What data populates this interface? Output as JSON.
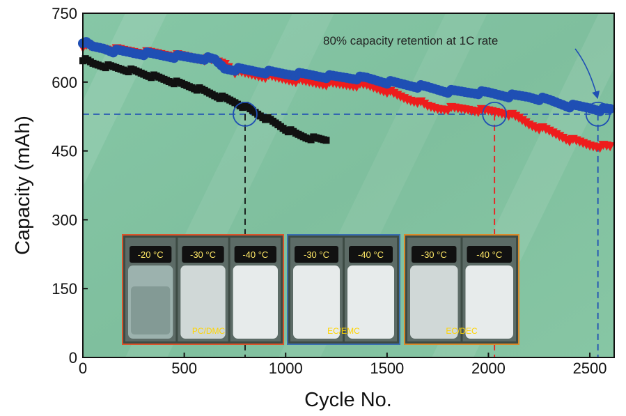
{
  "chart_data": {
    "type": "scatter",
    "xlabel": "Cycle No.",
    "ylabel": "Capacity (mAh)",
    "xlim": [
      0,
      2620
    ],
    "ylim": [
      0,
      750
    ],
    "xticks": [
      0,
      500,
      1000,
      1500,
      2000,
      2500
    ],
    "yticks": [
      0,
      150,
      300,
      450,
      600,
      750
    ],
    "grid": false,
    "series": [
      {
        "color": "#111111",
        "marker": "square",
        "points": [
          [
            0,
            650
          ],
          [
            50,
            640
          ],
          [
            100,
            636
          ],
          [
            150,
            632
          ],
          [
            200,
            628
          ],
          [
            250,
            624
          ],
          [
            300,
            618
          ],
          [
            350,
            612
          ],
          [
            400,
            606
          ],
          [
            450,
            600
          ],
          [
            500,
            594
          ],
          [
            550,
            588
          ],
          [
            600,
            580
          ],
          [
            650,
            572
          ],
          [
            700,
            564
          ],
          [
            750,
            556
          ],
          [
            800,
            546
          ],
          [
            850,
            534
          ],
          [
            900,
            522
          ],
          [
            950,
            510
          ],
          [
            1000,
            498
          ],
          [
            1050,
            487
          ],
          [
            1100,
            480
          ],
          [
            1150,
            476
          ],
          [
            1200,
            474
          ]
        ]
      },
      {
        "color": "#ee1c1c",
        "marker": "triangle-down",
        "points": [
          [
            0,
            678
          ],
          [
            100,
            673
          ],
          [
            200,
            668
          ],
          [
            300,
            664
          ],
          [
            400,
            660
          ],
          [
            500,
            655
          ],
          [
            600,
            650
          ],
          [
            700,
            640
          ],
          [
            750,
            622
          ],
          [
            800,
            618
          ],
          [
            900,
            612
          ],
          [
            1000,
            606
          ],
          [
            1100,
            600
          ],
          [
            1200,
            596
          ],
          [
            1300,
            594
          ],
          [
            1400,
            592
          ],
          [
            1500,
            580
          ],
          [
            1550,
            570
          ],
          [
            1600,
            562
          ],
          [
            1650,
            558
          ],
          [
            1700,
            546
          ],
          [
            1750,
            542
          ],
          [
            1800,
            542
          ],
          [
            1900,
            540
          ],
          [
            2000,
            536
          ],
          [
            2050,
            534
          ],
          [
            2100,
            530
          ],
          [
            2150,
            520
          ],
          [
            2200,
            508
          ],
          [
            2300,
            492
          ],
          [
            2400,
            474
          ],
          [
            2500,
            462
          ],
          [
            2600,
            458
          ]
        ]
      },
      {
        "color": "#1f4fb4",
        "marker": "circle",
        "points": [
          [
            0,
            688
          ],
          [
            50,
            676
          ],
          [
            100,
            674
          ],
          [
            150,
            668
          ],
          [
            200,
            666
          ],
          [
            300,
            662
          ],
          [
            400,
            658
          ],
          [
            500,
            654
          ],
          [
            600,
            652
          ],
          [
            650,
            648
          ],
          [
            700,
            630
          ],
          [
            800,
            626
          ],
          [
            900,
            622
          ],
          [
            1000,
            618
          ],
          [
            1100,
            616
          ],
          [
            1200,
            612
          ],
          [
            1300,
            610
          ],
          [
            1400,
            608
          ],
          [
            1500,
            600
          ],
          [
            1600,
            594
          ],
          [
            1700,
            588
          ],
          [
            1800,
            580
          ],
          [
            1900,
            578
          ],
          [
            2000,
            576
          ],
          [
            2100,
            570
          ],
          [
            2200,
            568
          ],
          [
            2300,
            560
          ],
          [
            2400,
            548
          ],
          [
            2500,
            544
          ],
          [
            2550,
            540
          ],
          [
            2600,
            540
          ]
        ]
      }
    ],
    "reference_line_y": 530,
    "drop_lines_x": [
      {
        "x": 800,
        "color": "#111111"
      },
      {
        "x": 2030,
        "color": "#ee1c1c"
      },
      {
        "x": 2540,
        "color": "#1f4fb4"
      }
    ],
    "circles_x": [
      800,
      2030,
      2540
    ],
    "annotation": "80% capacity retention at 1C rate"
  },
  "insets": [
    {
      "border_color": "#d9542b",
      "caption": "PC/DMC",
      "jars": [
        {
          "temp": "-20 °C",
          "clarity": "clear"
        },
        {
          "temp": "-30 °C",
          "clarity": "hazy"
        },
        {
          "temp": "-40 °C",
          "clarity": "cloudy"
        }
      ]
    },
    {
      "border_color": "#3a6fb0",
      "caption": "EC/EMC",
      "jars": [
        {
          "temp": "-30 °C",
          "clarity": "cloudy"
        },
        {
          "temp": "-40 °C",
          "clarity": "cloudy"
        }
      ]
    },
    {
      "border_color": "#d98a2b",
      "caption": "EC/DEC",
      "jars": [
        {
          "temp": "-30 °C",
          "clarity": "hazy"
        },
        {
          "temp": "-40 °C",
          "clarity": "cloudy"
        }
      ]
    }
  ]
}
